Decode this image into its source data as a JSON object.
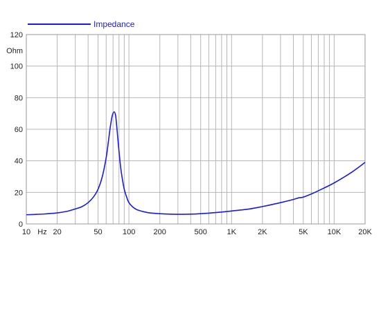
{
  "chart_data": {
    "type": "line",
    "title": "",
    "xlabel": "Hz",
    "ylabel": "Ohm",
    "x_scale": "log",
    "xlim": [
      10,
      20000
    ],
    "ylim": [
      0,
      120
    ],
    "grid": true,
    "legend_position": "top-left",
    "x_ticks": [
      {
        "value": 10,
        "label": "10"
      },
      {
        "value": 20,
        "label": "20"
      },
      {
        "value": 50,
        "label": "50"
      },
      {
        "value": 100,
        "label": "100"
      },
      {
        "value": 200,
        "label": "200"
      },
      {
        "value": 500,
        "label": "500"
      },
      {
        "value": 1000,
        "label": "1K"
      },
      {
        "value": 2000,
        "label": "2K"
      },
      {
        "value": 5000,
        "label": "5K"
      },
      {
        "value": 10000,
        "label": "10K"
      },
      {
        "value": 20000,
        "label": "20K"
      }
    ],
    "y_ticks": [
      0,
      20,
      40,
      60,
      80,
      100,
      120
    ],
    "series": [
      {
        "name": "Impedance",
        "color": "#1a1adf",
        "x": [
          10,
          12,
          15,
          18,
          20,
          25,
          30,
          35,
          40,
          45,
          50,
          55,
          60,
          63,
          66,
          69,
          72,
          74,
          75,
          77,
          80,
          83,
          86,
          90,
          95,
          100,
          110,
          120,
          140,
          160,
          200,
          250,
          300,
          350,
          400,
          500,
          700,
          1000,
          1500,
          2000,
          3000,
          4000,
          4500,
          5000,
          6000,
          7000,
          10000,
          15000,
          20000
        ],
        "y": [
          5.8,
          6.0,
          6.3,
          6.7,
          7.0,
          8.0,
          9.5,
          11.0,
          13.5,
          17.0,
          22.0,
          30.0,
          42.0,
          52.0,
          62.0,
          69.0,
          71.0,
          69.0,
          66.0,
          58.0,
          46.0,
          36.0,
          29.0,
          22.0,
          17.0,
          13.5,
          10.5,
          9.0,
          7.7,
          7.0,
          6.5,
          6.2,
          6.1,
          6.1,
          6.2,
          6.5,
          7.2,
          8.2,
          9.5,
          11.0,
          13.5,
          15.5,
          16.5,
          17.0,
          19.0,
          21.0,
          26.0,
          33.0,
          39.0
        ]
      }
    ]
  }
}
